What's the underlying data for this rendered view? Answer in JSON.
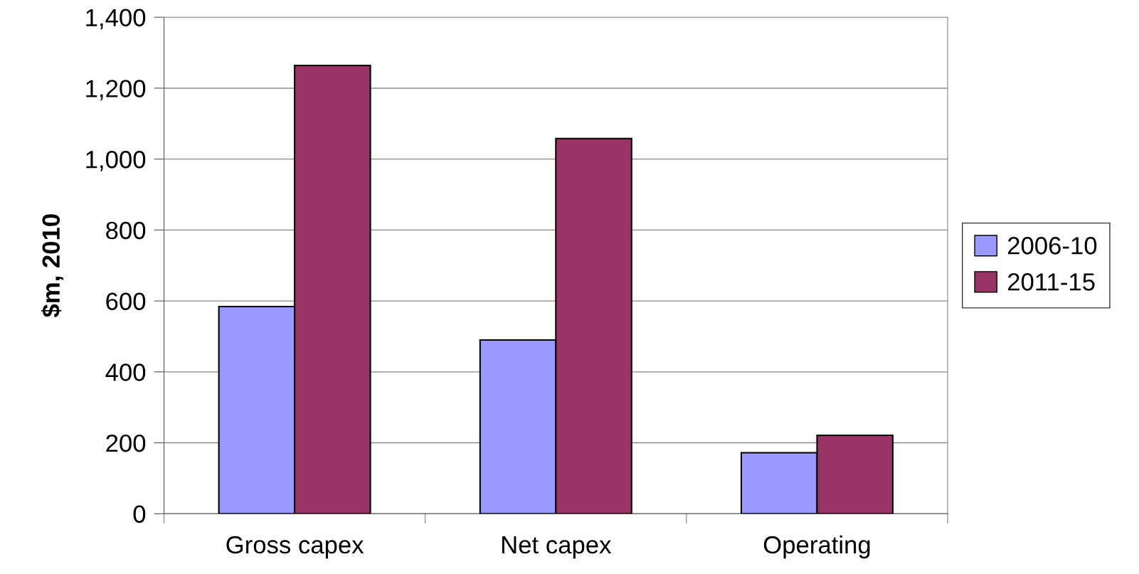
{
  "chart_data": {
    "type": "bar",
    "ylabel": "$m, 2010",
    "categories": [
      "Gross capex",
      "Net capex",
      "Operating"
    ],
    "series": [
      {
        "name": "2006-10",
        "color": "#9999ff",
        "values": [
          584,
          490,
          172
        ]
      },
      {
        "name": "2011-15",
        "color": "#993366",
        "values": [
          1264,
          1058,
          221
        ]
      }
    ],
    "ylim": [
      0,
      1400
    ],
    "yticks": [
      {
        "value": 0,
        "label": "0"
      },
      {
        "value": 200,
        "label": "200"
      },
      {
        "value": 400,
        "label": "400"
      },
      {
        "value": 600,
        "label": "600"
      },
      {
        "value": 800,
        "label": "800"
      },
      {
        "value": 1000,
        "label": "1,000"
      },
      {
        "value": 1200,
        "label": "1,200"
      },
      {
        "value": 1400,
        "label": "1,400"
      }
    ],
    "grid": "y",
    "legend": "right"
  }
}
